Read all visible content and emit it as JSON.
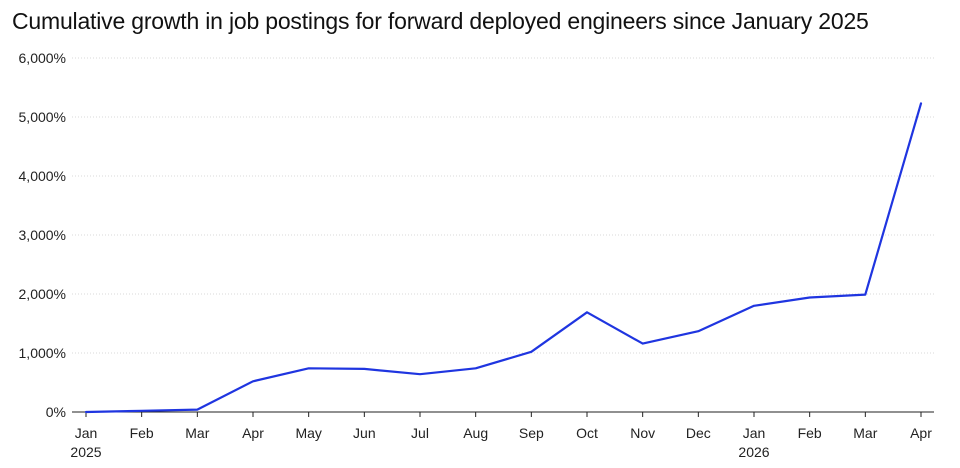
{
  "chart_data": {
    "type": "line",
    "title": "Cumulative growth in job postings for forward deployed engineers since January 2025",
    "xlabel": "",
    "ylabel": "",
    "categories": [
      "Jan",
      "Feb",
      "Mar",
      "Apr",
      "May",
      "Jun",
      "Jul",
      "Aug",
      "Sep",
      "Oct",
      "Nov",
      "Dec",
      "Jan",
      "Feb",
      "Mar",
      "Apr"
    ],
    "category_sublabels": [
      "2025",
      "",
      "",
      "",
      "",
      "",
      "",
      "",
      "",
      "",
      "",
      "",
      "2026",
      "",
      "",
      ""
    ],
    "series": [
      {
        "values": [
          0,
          20,
          40,
          520,
          740,
          730,
          640,
          740,
          1020,
          1690,
          1160,
          1370,
          1800,
          1940,
          1990,
          5230
        ]
      }
    ],
    "ylim": [
      0,
      6000
    ],
    "yticks": [
      0,
      1000,
      2000,
      3000,
      4000,
      5000,
      6000
    ],
    "ytick_labels": [
      "0%",
      "1,000%",
      "2,000%",
      "3,000%",
      "4,000%",
      "5,000%",
      "6,000%"
    ],
    "grid": true,
    "legend": "none",
    "colors": {
      "line": "#1f35e0",
      "grid": "#d9d9d9",
      "axis": "#222222"
    }
  }
}
